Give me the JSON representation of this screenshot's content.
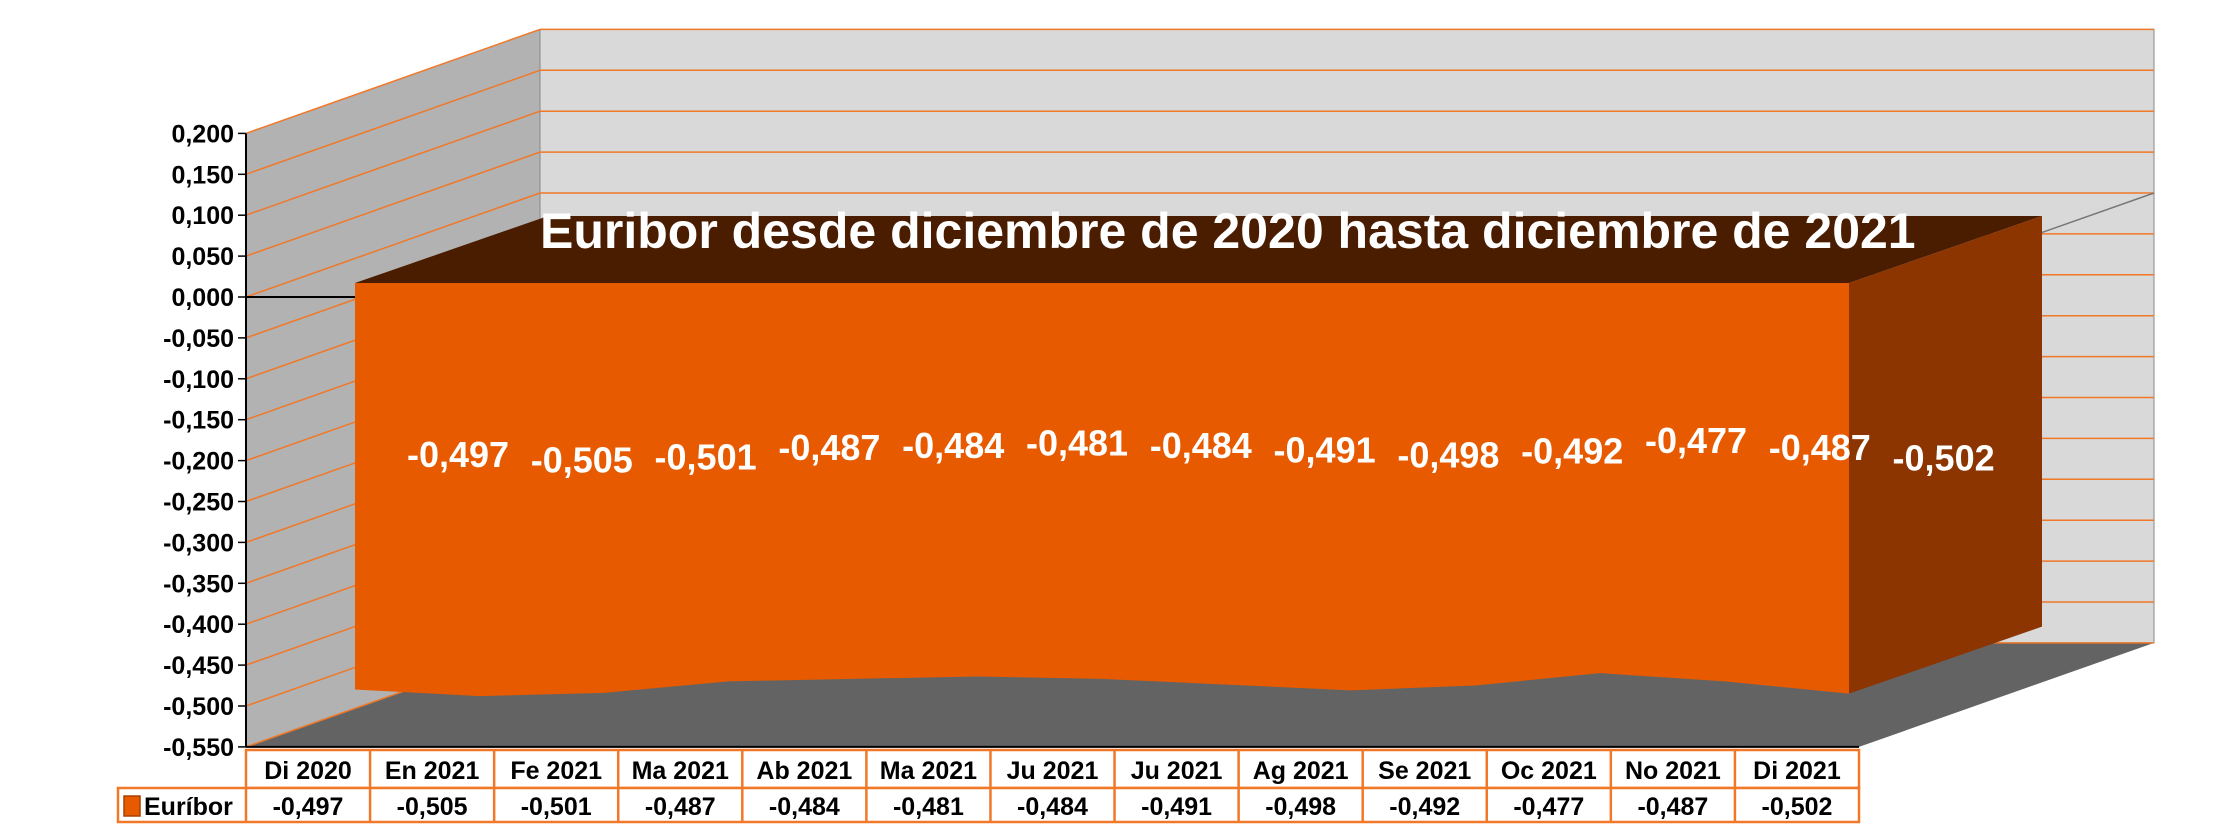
{
  "chart_data": {
    "type": "area",
    "three_d": true,
    "title": "Euribor desde diciembre de 2020 hasta diciembre de 2021",
    "categories": [
      "Di 2020",
      "En 2021",
      "Fe 2021",
      "Ma 2021",
      "Ab 2021",
      "Ma 2021",
      "Ju 2021",
      "Ju 2021",
      "Ag 2021",
      "Se 2021",
      "Oc 2021",
      "No 2021",
      "Di 2021"
    ],
    "series": [
      {
        "name": "Euríbor",
        "values": [
          -0.497,
          -0.505,
          -0.501,
          -0.487,
          -0.484,
          -0.481,
          -0.484,
          -0.491,
          -0.498,
          -0.492,
          -0.477,
          -0.487,
          -0.502
        ],
        "color": "#e85a00"
      }
    ],
    "data_labels": [
      "-0,497",
      "-0,505",
      "-0,501",
      "-0,487",
      "-0,484",
      "-0,481",
      "-0,484",
      "-0,491",
      "-0,498",
      "-0,492",
      "-0,477",
      "-0,487",
      "-0,502"
    ],
    "ylim": [
      -0.55,
      0.2
    ],
    "ytick_labels": [
      "0,200",
      "0,150",
      "0,100",
      "0,050",
      "0,000",
      "-0,050",
      "-0,100",
      "-0,150",
      "-0,200",
      "-0,250",
      "-0,300",
      "-0,350",
      "-0,400",
      "-0,450",
      "-0,500",
      "-0,550"
    ],
    "grid": true,
    "legend": "data-table",
    "data_table": true,
    "colors": {
      "front": "#e85a00",
      "top": "#4a1c00",
      "side": "#8c3500",
      "grid": "#f07828",
      "back_wall": "#d9d9d9",
      "side_wall": "#b2b2b2",
      "floor": "#636363"
    }
  }
}
